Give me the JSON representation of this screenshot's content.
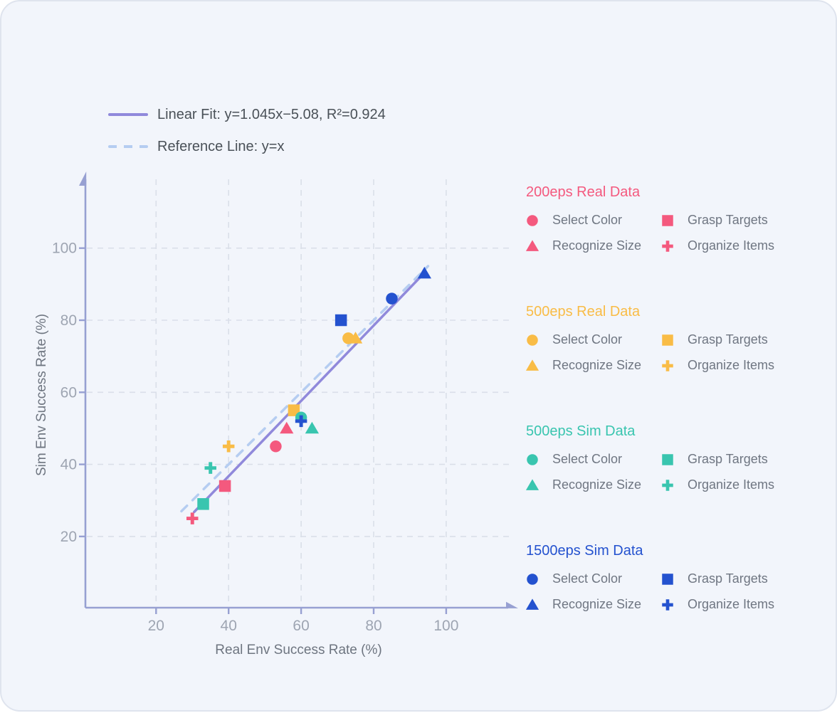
{
  "top_legend": {
    "fit_label": "Linear Fit: y=1.045x−5.08, R²=0.924",
    "reference_label": "Reference Line: y=x"
  },
  "colors": {
    "background": "#F2F5FB",
    "axis": "#97A0D2",
    "grid": "#DADFE9",
    "tick_label": "#9EA5B2",
    "axis_title": "#6E7580",
    "legend_text": "#6F7682",
    "fit_line": "#9089DB",
    "reference_line": "#B5CDF1"
  },
  "chart_data": {
    "type": "scatter",
    "title": "",
    "xlabel": "Real Env Success Rate (%)",
    "ylabel": "Sim Env Success Rate (%)",
    "x_ticks": [
      20,
      40,
      60,
      80,
      100
    ],
    "y_ticks": [
      20,
      40,
      60,
      80,
      100
    ],
    "xlim": [
      0,
      117
    ],
    "ylim": [
      0,
      118
    ],
    "grid": true,
    "legend_position": "right",
    "fit_line": {
      "label": "Linear Fit: y=1.045x−5.08, R²=0.924",
      "slope": 1.045,
      "intercept": -5.08,
      "x_start": 30.5,
      "x_end": 94,
      "color": "#9089DB",
      "style": "solid"
    },
    "reference_line": {
      "label": "Reference Line: y=x",
      "slope": 1,
      "intercept": 0,
      "x_start": 27,
      "x_end": 95,
      "color": "#B5CDF1",
      "style": "dashed"
    },
    "series": [
      {
        "name": "200eps Real Data",
        "color": "#F4597E",
        "points": [
          {
            "label": "Select Color",
            "marker": "circle",
            "x": 53,
            "y": 45
          },
          {
            "label": "Grasp Targets",
            "marker": "square",
            "x": 39,
            "y": 34
          },
          {
            "label": "Recognize Size",
            "marker": "triangle",
            "x": 56,
            "y": 50
          },
          {
            "label": "Organize Items",
            "marker": "plus",
            "x": 30,
            "y": 25
          }
        ]
      },
      {
        "name": "500eps Real Data",
        "color": "#F9BC46",
        "points": [
          {
            "label": "Select Color",
            "marker": "circle",
            "x": 73,
            "y": 75
          },
          {
            "label": "Grasp Targets",
            "marker": "square",
            "x": 58,
            "y": 55
          },
          {
            "label": "Recognize Size",
            "marker": "triangle",
            "x": 75,
            "y": 75
          },
          {
            "label": "Organize Items",
            "marker": "plus",
            "x": 40,
            "y": 45
          }
        ]
      },
      {
        "name": "500eps Sim Data",
        "color": "#39C5AF",
        "points": [
          {
            "label": "Select Color",
            "marker": "circle",
            "x": 60,
            "y": 53
          },
          {
            "label": "Grasp Targets",
            "marker": "square",
            "x": 33,
            "y": 29
          },
          {
            "label": "Recognize Size",
            "marker": "triangle",
            "x": 63,
            "y": 50
          },
          {
            "label": "Organize Items",
            "marker": "plus",
            "x": 35,
            "y": 39
          }
        ]
      },
      {
        "name": "1500eps Sim Data",
        "color": "#2452CF",
        "points": [
          {
            "label": "Select Color",
            "marker": "circle",
            "x": 85,
            "y": 86
          },
          {
            "label": "Grasp Targets",
            "marker": "square",
            "x": 71,
            "y": 80
          },
          {
            "label": "Recognize Size",
            "marker": "triangle",
            "x": 94,
            "y": 93
          },
          {
            "label": "Organize Items",
            "marker": "plus",
            "x": 60,
            "y": 52
          }
        ]
      }
    ]
  }
}
